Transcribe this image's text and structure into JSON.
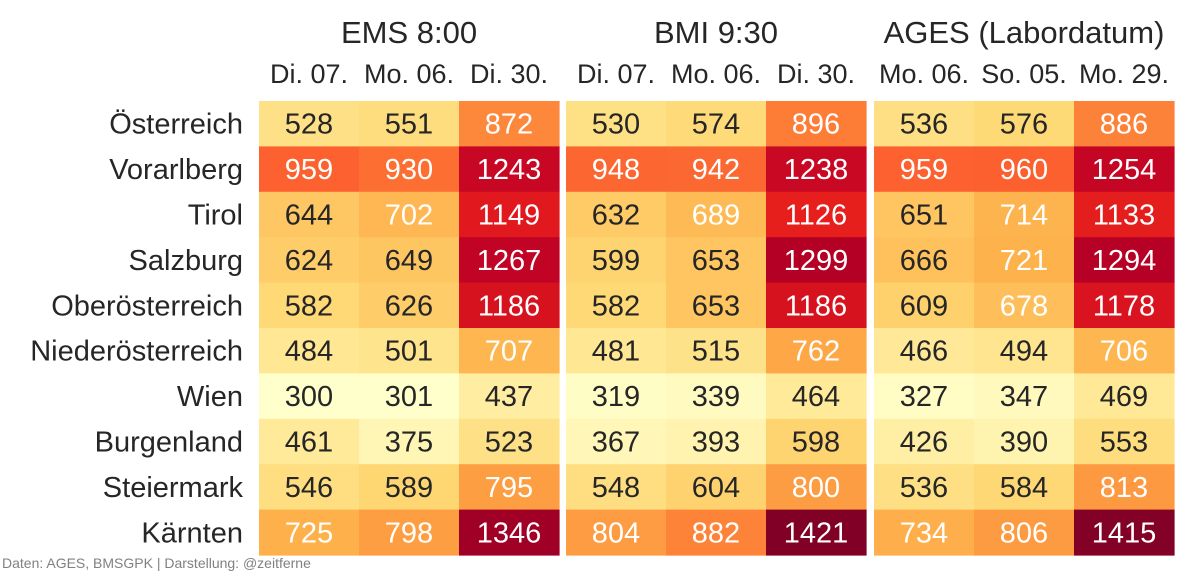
{
  "footer": "Daten: AGES, BMSGPK | Darstellung: @zeitferne",
  "chart_data": {
    "type": "heatmap",
    "rows": [
      "Österreich",
      "Vorarlberg",
      "Tirol",
      "Salzburg",
      "Oberösterreich",
      "Niederösterreich",
      "Wien",
      "Burgenland",
      "Steiermark",
      "Kärnten"
    ],
    "groups": [
      {
        "title": "EMS 8:00",
        "columns": [
          "Di. 07.",
          "Mo. 06.",
          "Di. 30."
        ],
        "values": [
          [
            528,
            551,
            872
          ],
          [
            959,
            930,
            1243
          ],
          [
            644,
            702,
            1149
          ],
          [
            624,
            649,
            1267
          ],
          [
            582,
            626,
            1186
          ],
          [
            484,
            501,
            707
          ],
          [
            300,
            301,
            437
          ],
          [
            461,
            375,
            523
          ],
          [
            546,
            589,
            795
          ],
          [
            725,
            798,
            1346
          ]
        ]
      },
      {
        "title": "BMI 9:30",
        "columns": [
          "Di. 07.",
          "Mo. 06.",
          "Di. 30."
        ],
        "values": [
          [
            530,
            574,
            896
          ],
          [
            948,
            942,
            1238
          ],
          [
            632,
            689,
            1126
          ],
          [
            599,
            653,
            1299
          ],
          [
            582,
            653,
            1186
          ],
          [
            481,
            515,
            762
          ],
          [
            319,
            339,
            464
          ],
          [
            367,
            393,
            598
          ],
          [
            548,
            604,
            800
          ],
          [
            804,
            882,
            1421
          ]
        ]
      },
      {
        "title": "AGES (Labordatum)",
        "columns": [
          "Mo. 06.",
          "So. 05.",
          "Mo. 29."
        ],
        "values": [
          [
            536,
            576,
            886
          ],
          [
            959,
            960,
            1254
          ],
          [
            651,
            714,
            1133
          ],
          [
            666,
            721,
            1294
          ],
          [
            609,
            678,
            1178
          ],
          [
            466,
            494,
            706
          ],
          [
            327,
            347,
            469
          ],
          [
            426,
            390,
            553
          ],
          [
            536,
            584,
            813
          ],
          [
            734,
            806,
            1415
          ]
        ]
      }
    ],
    "colormap": "YlOrRd",
    "vrange": [
      300,
      1421
    ]
  }
}
